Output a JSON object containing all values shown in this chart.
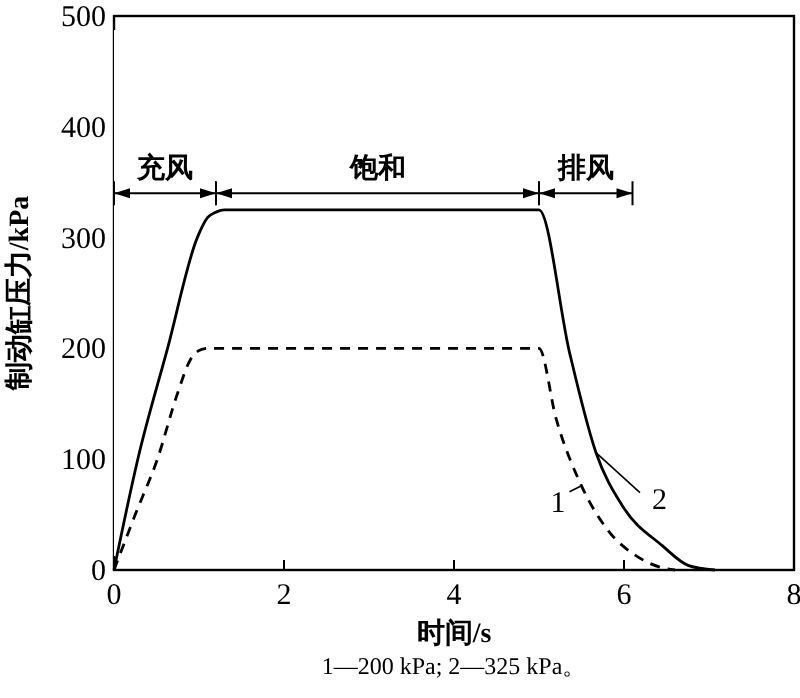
{
  "chart_data": {
    "type": "line",
    "xlabel": "时间/s",
    "ylabel": "制动缸压力/kPa",
    "xlim": [
      0,
      8
    ],
    "ylim": [
      0,
      500
    ],
    "xticks": [
      0,
      2,
      4,
      6,
      8
    ],
    "yticks": [
      0,
      100,
      200,
      300,
      400,
      500
    ],
    "grid": false,
    "marker": "none",
    "series": [
      {
        "name": "1",
        "color": "#000000",
        "line_style": "dashed",
        "x": [
          0,
          0.25,
          0.51,
          0.75,
          0.9,
          1.0,
          1.1,
          5.0,
          5.2,
          5.5,
          5.83,
          6.14,
          6.45,
          6.6
        ],
        "values": [
          0,
          50,
          100,
          160,
          190,
          198,
          200,
          200,
          137,
          76,
          34,
          13,
          2,
          0
        ]
      },
      {
        "name": "2",
        "color": "#000000",
        "line_style": "solid",
        "x": [
          0,
          0.28,
          0.63,
          0.98,
          1.1,
          1.2,
          1.3,
          5.0,
          5.36,
          5.67,
          5.98,
          6.45,
          6.76,
          7.07
        ],
        "values": [
          0,
          100,
          200,
          300,
          318,
          323,
          325,
          325,
          196,
          106,
          58,
          22,
          4,
          0
        ]
      }
    ],
    "bands": [
      {
        "axis": "x",
        "from": 0,
        "to": 1.2,
        "label": "充风",
        "color": "#ffffff"
      },
      {
        "axis": "x",
        "from": 1.2,
        "to": 5.0,
        "label": "饱和",
        "color": "#ffffff"
      },
      {
        "axis": "x",
        "from": 5.0,
        "to": 6.1,
        "label": "排风",
        "color": "#ffffff"
      }
    ],
    "annotations": [
      "1—200 kPa; 2—325 kPa。"
    ]
  }
}
